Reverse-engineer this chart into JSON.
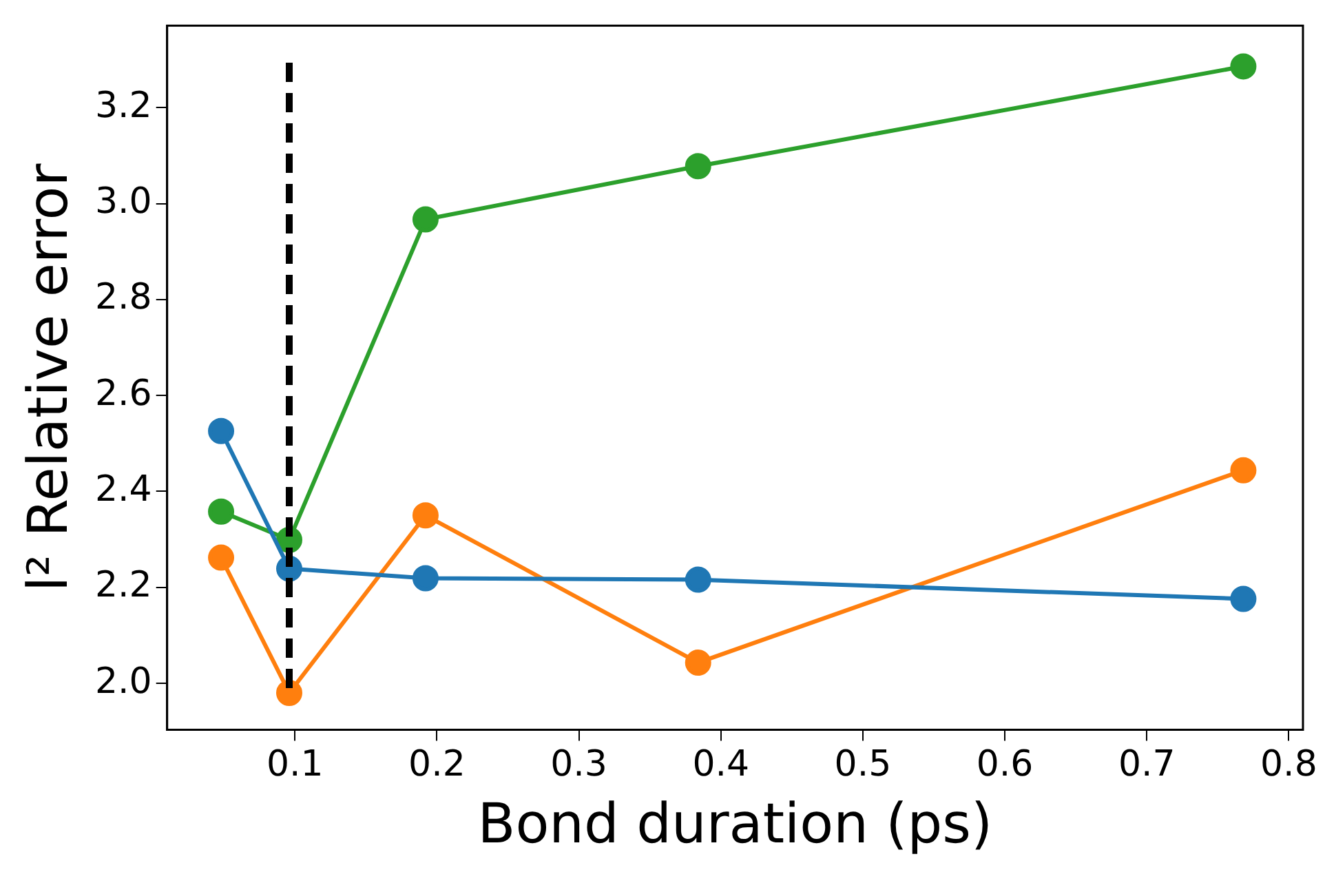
{
  "chart_data": {
    "type": "line",
    "xlabel": "Bond duration (ps)",
    "ylabel": "l² Relative error",
    "x": [
      0.048,
      0.096,
      0.192,
      0.384,
      0.768
    ],
    "series": [
      {
        "color": "#1f77b4",
        "values": [
          2.526,
          2.239,
          2.219,
          2.216,
          2.176
        ]
      },
      {
        "color": "#ff7f0e",
        "values": [
          2.262,
          1.98,
          2.35,
          2.043,
          2.444
        ]
      },
      {
        "color": "#2ca02c",
        "values": [
          2.358,
          2.299,
          2.967,
          3.078,
          3.286
        ]
      },
      {
        "color": "#000000",
        "x": [
          0.096,
          0.096
        ],
        "values": [
          1.99,
          3.3
        ],
        "line_style": "dashed",
        "marker": "none"
      }
    ],
    "marker": "circle",
    "line_style": "solid",
    "xlim": [
      0.01,
      0.81
    ],
    "xticks": [
      0.1,
      0.2,
      0.3,
      0.4,
      0.5,
      0.6,
      0.7,
      0.8
    ],
    "ylim": [
      1.903,
      3.371
    ],
    "yticks": [
      {
        "value": 2,
        "label": "2.0"
      },
      2.2,
      2.4,
      2.6,
      2.8,
      {
        "value": 3,
        "label": "3.0"
      },
      3.2
    ],
    "grid": false,
    "legend": false
  }
}
